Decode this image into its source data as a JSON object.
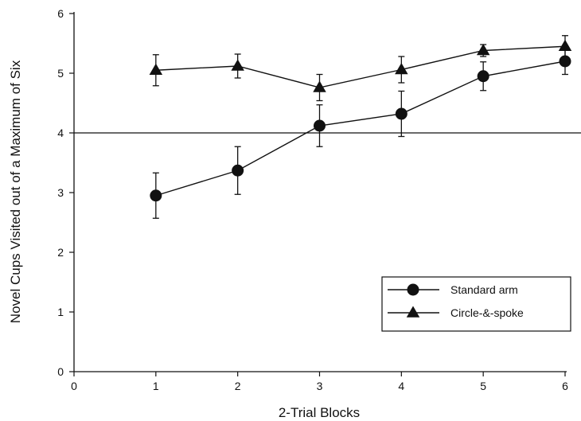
{
  "chart_data": {
    "type": "line",
    "title": "",
    "xlabel": "2-Trial Blocks",
    "ylabel": "Novel Cups Visited out of a Maximum of Six",
    "xlim": [
      0,
      6
    ],
    "ylim": [
      0,
      6
    ],
    "x_ticks": [
      0,
      1,
      2,
      3,
      4,
      5,
      6
    ],
    "y_ticks": [
      0,
      1,
      2,
      3,
      4,
      5,
      6
    ],
    "grid": false,
    "legend_position": "bottom-right",
    "reference_line": {
      "y": 4
    },
    "series": [
      {
        "name": "Standard arm",
        "marker": "circle",
        "x": [
          1,
          2,
          3,
          4,
          5,
          6
        ],
        "values": [
          2.95,
          3.37,
          4.12,
          4.32,
          4.95,
          5.2
        ],
        "error": [
          0.38,
          0.4,
          0.35,
          0.38,
          0.24,
          0.22
        ]
      },
      {
        "name": "Circle-&-spoke",
        "marker": "triangle",
        "x": [
          1,
          2,
          3,
          4,
          5,
          6
        ],
        "values": [
          5.05,
          5.12,
          4.76,
          5.06,
          5.38,
          5.45
        ],
        "error": [
          0.26,
          0.2,
          0.22,
          0.22,
          0.1,
          0.18
        ]
      }
    ],
    "colors": {
      "ink": "#111111",
      "background": "#ffffff"
    }
  }
}
